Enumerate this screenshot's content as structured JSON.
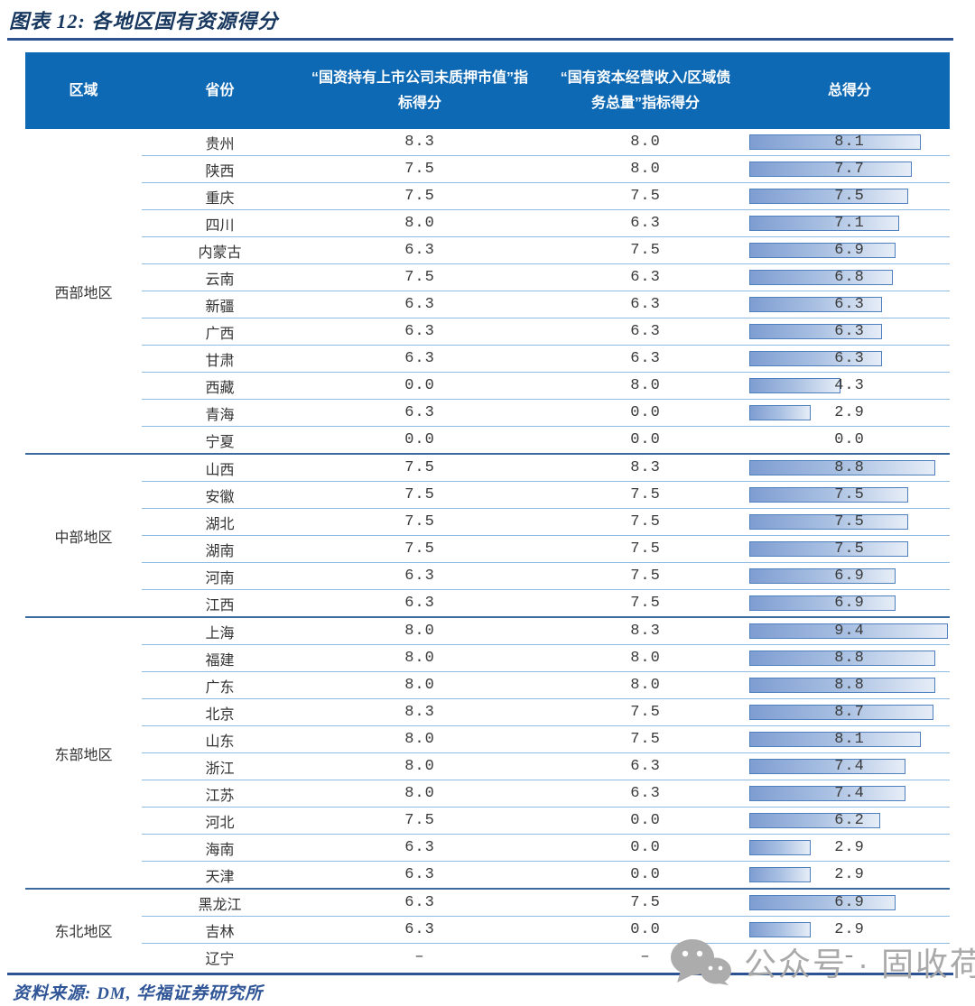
{
  "title": "图表 12: 各地区国有资源得分",
  "source": "资料来源: DM, 华福证券研究所",
  "watermark": {
    "icon": "wechat-icon",
    "text": "公众号 · 固收荷语"
  },
  "colors": {
    "header_bg": "#0E69B4",
    "title_navy": "#17375E",
    "frame_rule": "#2C5291",
    "row_separator": "#8FBBE2",
    "group_separator": "#3A6A9E",
    "bar_fill_start": "#7E9DD1",
    "bar_fill_end": "#E6EDF7",
    "bar_border": "#4E7FBE",
    "source_blue": "#2F5597",
    "watermark_gray": "#A9A9A9"
  },
  "chart_data": {
    "type": "table",
    "columns": [
      "区域",
      "省份",
      "“国资持有上市公司未质押市值”指标得分",
      "“国有资本经营收入/区域债务总量”指标得分",
      "总得分"
    ],
    "score_max": 9.4,
    "bar_note": "总得分 column shows Excel-style gradient data bars scaled to score/9.4",
    "groups": [
      {
        "region": "西部地区",
        "rows": [
          {
            "province": "贵州",
            "score1": "8.3",
            "score2": "8.0",
            "total": "8.1"
          },
          {
            "province": "陕西",
            "score1": "7.5",
            "score2": "8.0",
            "total": "7.7"
          },
          {
            "province": "重庆",
            "score1": "7.5",
            "score2": "7.5",
            "total": "7.5"
          },
          {
            "province": "四川",
            "score1": "8.0",
            "score2": "6.3",
            "total": "7.1"
          },
          {
            "province": "内蒙古",
            "score1": "6.3",
            "score2": "7.5",
            "total": "6.9"
          },
          {
            "province": "云南",
            "score1": "7.5",
            "score2": "6.3",
            "total": "6.8"
          },
          {
            "province": "新疆",
            "score1": "6.3",
            "score2": "6.3",
            "total": "6.3"
          },
          {
            "province": "广西",
            "score1": "6.3",
            "score2": "6.3",
            "total": "6.3"
          },
          {
            "province": "甘肃",
            "score1": "6.3",
            "score2": "6.3",
            "total": "6.3"
          },
          {
            "province": "西藏",
            "score1": "0.0",
            "score2": "8.0",
            "total": "4.3"
          },
          {
            "province": "青海",
            "score1": "6.3",
            "score2": "0.0",
            "total": "2.9"
          },
          {
            "province": "宁夏",
            "score1": "0.0",
            "score2": "0.0",
            "total": "0.0"
          }
        ]
      },
      {
        "region": "中部地区",
        "rows": [
          {
            "province": "山西",
            "score1": "7.5",
            "score2": "8.3",
            "total": "8.8"
          },
          {
            "province": "安徽",
            "score1": "7.5",
            "score2": "7.5",
            "total": "7.5"
          },
          {
            "province": "湖北",
            "score1": "7.5",
            "score2": "7.5",
            "total": "7.5"
          },
          {
            "province": "湖南",
            "score1": "7.5",
            "score2": "7.5",
            "total": "7.5"
          },
          {
            "province": "河南",
            "score1": "6.3",
            "score2": "7.5",
            "total": "6.9"
          },
          {
            "province": "江西",
            "score1": "6.3",
            "score2": "7.5",
            "total": "6.9"
          }
        ]
      },
      {
        "region": "东部地区",
        "rows": [
          {
            "province": "上海",
            "score1": "8.0",
            "score2": "8.3",
            "total": "9.4"
          },
          {
            "province": "福建",
            "score1": "8.0",
            "score2": "8.0",
            "total": "8.8"
          },
          {
            "province": "广东",
            "score1": "8.0",
            "score2": "8.0",
            "total": "8.8"
          },
          {
            "province": "北京",
            "score1": "8.3",
            "score2": "7.5",
            "total": "8.7"
          },
          {
            "province": "山东",
            "score1": "8.0",
            "score2": "7.5",
            "total": "8.1"
          },
          {
            "province": "浙江",
            "score1": "8.0",
            "score2": "6.3",
            "total": "7.4"
          },
          {
            "province": "江苏",
            "score1": "8.0",
            "score2": "6.3",
            "total": "7.4"
          },
          {
            "province": "河北",
            "score1": "7.5",
            "score2": "0.0",
            "total": "6.2"
          },
          {
            "province": "海南",
            "score1": "6.3",
            "score2": "0.0",
            "total": "2.9"
          },
          {
            "province": "天津",
            "score1": "6.3",
            "score2": "0.0",
            "total": "2.9"
          }
        ]
      },
      {
        "region": "东北地区",
        "rows": [
          {
            "province": "黑龙江",
            "score1": "6.3",
            "score2": "7.5",
            "total": "6.9"
          },
          {
            "province": "吉林",
            "score1": "6.3",
            "score2": "0.0",
            "total": "2.9"
          },
          {
            "province": "辽宁",
            "score1": "–",
            "score2": "–",
            "total": "–"
          }
        ]
      }
    ]
  }
}
